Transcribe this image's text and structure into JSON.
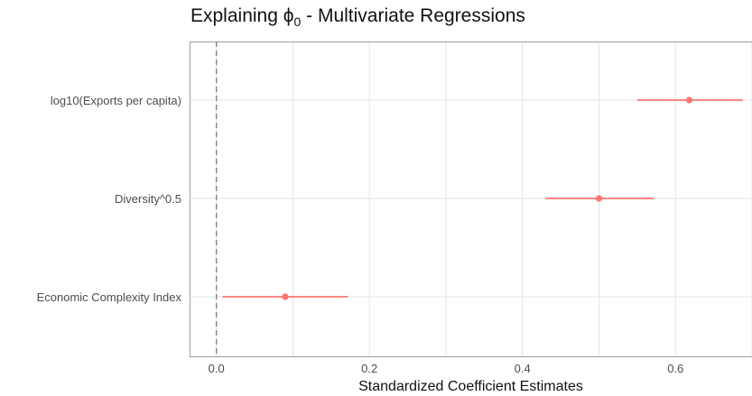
{
  "chart_data": {
    "type": "scatter",
    "title_prefix": "Explaining ",
    "title_symbol": "ϕ",
    "title_subscript": "0",
    "title_suffix": " - Multivariate Regressions",
    "xlabel": "Standardized Coefficient Estimates",
    "ylabel": "",
    "categories": [
      "Economic Complexity Index",
      "Diversity^0.5",
      "log10(Exports per capita)"
    ],
    "estimates": [
      0.09,
      0.5,
      0.618
    ],
    "ci_low": [
      0.008,
      0.43,
      0.55
    ],
    "ci_high": [
      0.172,
      0.572,
      0.688
    ],
    "x_ticks": [
      0.0,
      0.2,
      0.4,
      0.6
    ],
    "x_tick_labels": [
      "0.0",
      "0.2",
      "0.4",
      "0.6"
    ],
    "xlim": [
      -0.035,
      0.7
    ],
    "reference_line": 0,
    "grid": true,
    "colors": {
      "point": "#f8766d",
      "grid": "#e5e5e5",
      "frame": "#9e9e9e",
      "reference": "#7f7f7f"
    }
  }
}
